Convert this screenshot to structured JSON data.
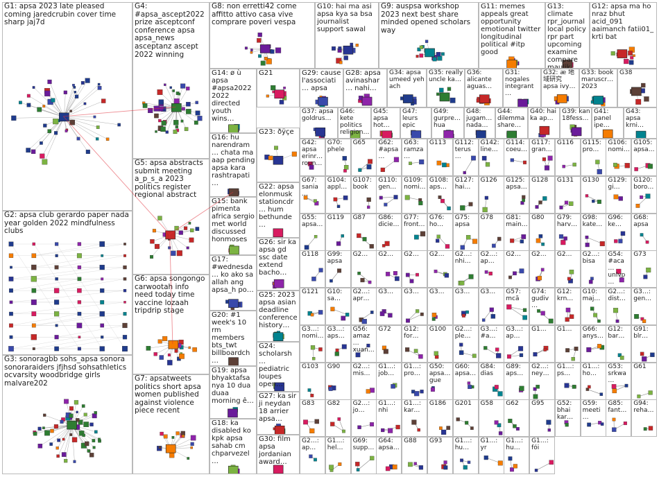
{
  "graph": {
    "colors": {
      "border": "#b9b9b9",
      "edge": "#8a8a8a",
      "highlight_edge": "#e0303a",
      "label": "#1d1d1d",
      "node_palette": [
        "#1f3b8c",
        "#2e7d32",
        "#c62828",
        "#6a1b9a",
        "#f57c00",
        "#00838f",
        "#5d4037",
        "#283593",
        "#7cb342",
        "#d81b60",
        "#3949ab",
        "#8e24aa"
      ]
    },
    "groups": [
      {
        "id": "G1",
        "label": "G1: apsa 2023 late pleased coming jaredcrubin cover time sharp jaj7d",
        "nodes": 45,
        "accent": "#1f3b8c"
      },
      {
        "id": "G4",
        "label": "G4: #apsa_ascept2022 prize asceptconf conference apsa apsa_news asceptanz ascept 2022 winning",
        "nodes": 40,
        "accent": "#2e7d32"
      },
      {
        "id": "G8",
        "label": "G8: non erretti42 come affitto attivo casa vive comprare poveri vespa",
        "nodes": 14,
        "accent": "#6a1b9a"
      },
      {
        "id": "G10",
        "label": "G10: hai ma asi apsa kya sa bsa journalist support sawal",
        "nodes": 10,
        "accent": "#283593"
      },
      {
        "id": "G9",
        "label": "G9: auspsa workshop 2023 next best share minded opened scholars way",
        "nodes": 12,
        "accent": "#00838f"
      },
      {
        "id": "G11",
        "label": "G11: memes appeals great opportunity emotional twitter longitudinal political #itp good",
        "nodes": 10,
        "accent": "#f57c00"
      },
      {
        "id": "G13",
        "label": "G13: climate rpr_journal local policy rpr part upcoming examine compare maulik",
        "nodes": 9,
        "accent": "#5d4037"
      },
      {
        "id": "G12",
        "label": "G12: apsa ma ho nraz bhut acid_091 aaimanch fatii01_ krti bat",
        "nodes": 9,
        "accent": "#c62828"
      },
      {
        "id": "G14",
        "label": "G14: ø ù apsa #apsa2022 2022 directed youth wins…",
        "nodes": 8,
        "accent": "#7cb342"
      },
      {
        "id": "G21",
        "label": "G21",
        "nodes": 7,
        "accent": "#d81b60"
      },
      {
        "id": "G29",
        "label": "G29: cause l'associati… apsa",
        "nodes": 6,
        "accent": "#3949ab"
      },
      {
        "id": "G28",
        "label": "G28: apsa avinashar… nahi…",
        "nodes": 6,
        "accent": "#8e24aa"
      },
      {
        "id": "G34",
        "label": "G34: apsa umeed yeh ach",
        "nodes": 5,
        "accent": "#1f3b8c"
      },
      {
        "id": "G35",
        "label": "G35: really uncle ka…",
        "nodes": 5,
        "accent": "#2e7d32"
      },
      {
        "id": "G36",
        "label": "G36: alicante aguas…",
        "nodes": 5,
        "accent": "#c62828"
      },
      {
        "id": "G31",
        "label": "G31: nogales integrant…",
        "nodes": 5,
        "accent": "#6a1b9a"
      },
      {
        "id": "G32",
        "label": "G32: æ 地域研究 apsa ivy…",
        "nodes": 5,
        "accent": "#f57c00"
      },
      {
        "id": "G33",
        "label": "G33: book maruscr… 2023",
        "nodes": 5,
        "accent": "#00838f"
      },
      {
        "id": "G38",
        "label": "G38",
        "nodes": 5,
        "accent": "#5d4037"
      },
      {
        "id": "G37",
        "label": "G37: apsa goldrus…",
        "nodes": 5,
        "accent": "#283593"
      },
      {
        "id": "G46",
        "label": "G46: kete politics religion…",
        "nodes": 4,
        "accent": "#7cb342"
      },
      {
        "id": "G45",
        "label": "G45: apsa hot…",
        "nodes": 4,
        "accent": "#d81b60"
      },
      {
        "id": "G47",
        "label": "G47: leurs epic",
        "nodes": 4,
        "accent": "#3949ab"
      },
      {
        "id": "G49",
        "label": "G49: gurpre… hua",
        "nodes": 4,
        "accent": "#8e24aa"
      },
      {
        "id": "G48",
        "label": "G48: jugam… nada…",
        "nodes": 4,
        "accent": "#1f3b8c"
      },
      {
        "id": "G44",
        "label": "G44: dilemma share…",
        "nodes": 4,
        "accent": "#2e7d32"
      },
      {
        "id": "G40",
        "label": "G40: hai ka ap…",
        "nodes": 4,
        "accent": "#c62828"
      },
      {
        "id": "G39",
        "label": "G39: kan 18fess…",
        "nodes": 4,
        "accent": "#6a1b9a"
      },
      {
        "id": "G41",
        "label": "G41: panel ipe…",
        "nodes": 4,
        "accent": "#f57c00"
      },
      {
        "id": "G43",
        "label": "G43: apsa krni…",
        "nodes": 4,
        "accent": "#00838f"
      },
      {
        "id": "G16",
        "label": "G16: hu narendram… chata ma aap pending apsa kara rashtrapati…",
        "nodes": 6,
        "accent": "#5d4037"
      },
      {
        "id": "G23",
        "label": "G23: ðÿçe",
        "nodes": 5,
        "accent": "#283593"
      },
      {
        "id": "G5",
        "label": "G5: apsa abstracts submit meeting a_p_s_a 2023 politics register regional abstract",
        "nodes": 18,
        "accent": "#c62828"
      },
      {
        "id": "G15",
        "label": "G15: bank pimenta africa sergio met world discussed honmoses",
        "nodes": 6,
        "accent": "#7cb342"
      },
      {
        "id": "G22",
        "label": "G22: apsa elonmusk stationcdr… hum bethunde…",
        "nodes": 5,
        "accent": "#d81b60"
      },
      {
        "id": "G17",
        "label": "G17: #wednesda… ko ako sa allah ang apsa_h po…",
        "nodes": 6,
        "accent": "#3949ab"
      },
      {
        "id": "G26",
        "label": "G26: sir ka apsa gd ssc date extend bacho…",
        "nodes": 5,
        "accent": "#8e24aa"
      },
      {
        "id": "G2",
        "label": "G2: apsa club gerardo paper nada year golden 2022 mindfulness clubs",
        "nodes": 60,
        "accent": "#1f3b8c"
      },
      {
        "id": "G6",
        "label": "G6: apsa songongo carwootah info need today time vaccine lozaah tripdrip stage",
        "nodes": 16,
        "accent": "#f57c00"
      },
      {
        "id": "G25",
        "label": "G25: 2023 apsa asian deadline conference history…",
        "nodes": 5,
        "accent": "#00838f"
      },
      {
        "id": "G20",
        "label": "G20: #1 week's 10 rm members bts_twt billboardch…",
        "nodes": 6,
        "accent": "#5d4037"
      },
      {
        "id": "G24",
        "label": "G24: scholarsh… pediatric loupes open…",
        "nodes": 5,
        "accent": "#283593"
      },
      {
        "id": "G3",
        "label": "G3: sonoragbb sohs_apsa sonora sonoraraiders jfjhsd sohsathletics ocvarsity woodbridge girls malvare202",
        "nodes": 50,
        "accent": "#2e7d32"
      },
      {
        "id": "G7",
        "label": "G7: apsatweets politics short apsa women published against violence piece recent",
        "nodes": 14,
        "accent": "#f57c00"
      },
      {
        "id": "G19",
        "label": "G19: apsa bhyaktafsa nya 10 dua duaa morning ê…",
        "nodes": 6,
        "accent": "#6a1b9a"
      },
      {
        "id": "G27",
        "label": "G27: ka sir ji neydan 18 arrier apsa…",
        "nodes": 5,
        "accent": "#c62828"
      },
      {
        "id": "G18",
        "label": "G18: ka disabled ko kpk apsa sahab cm chparvezel…",
        "nodes": 6,
        "accent": "#7cb342"
      },
      {
        "id": "G30",
        "label": "G30: film apsa jordanian award…",
        "nodes": 5,
        "accent": "#d81b60"
      }
    ],
    "mini_labels": [
      "G42: apsa erinr… roun…",
      "G70: phele",
      "G65",
      "G62: #apsa…",
      "G63: ramza…",
      "G113",
      "G112: terus…",
      "G142: line…",
      "G114: coeu…",
      "G117: gran…",
      "G116",
      "G115: pro…",
      "G106: nomi…",
      "G105: apsa…",
      "G67: sania…",
      "G104: appl…",
      "G107: book",
      "G110: gen…",
      "G109: nomi…",
      "G108: aps…",
      "G127: hai…",
      "G126",
      "G125: apsa…",
      "G128",
      "G131",
      "G130",
      "G129: gi…",
      "G120: boro…",
      "G55: apsa…",
      "G119",
      "G87",
      "G86: dicie…",
      "G77: front…",
      "G76: ho…",
      "G75: apsa",
      "G78",
      "G81: main…",
      "G80",
      "G79: harv…",
      "G98: kate…",
      "G96: ke…",
      "G68: apsa",
      "G118",
      "G99: apsa",
      "G2…",
      "G2…",
      "G2…",
      "G2…",
      "G2…: nhi…",
      "G2…: ap…",
      "G2…",
      "G2…",
      "G2…",
      "G2…: bisa",
      "G54: #aca… unlvp…",
      "G73",
      "G121",
      "G10: sa…",
      "G2…: apr…",
      "G3…",
      "G3…",
      "G3…",
      "G3…",
      "G3…",
      "G57: mcă",
      "G74: gudiv…",
      "G12: krn…",
      "G10: maj…",
      "G2…: dist…",
      "G3…: gen…",
      "G3…: nomi…",
      "G3…: aps…",
      "G56: amaz… xuan…",
      "G72",
      "G12: for…",
      "G100",
      "G2…: ple…",
      "G3…: #a…",
      "G3…: ap…",
      "G1…",
      "G1…",
      "G66: anys…",
      "G12: bar…",
      "G91: blr…",
      "G103",
      "G90",
      "G2…: mis…",
      "G1…: job…",
      "G1…: pro…",
      "G50: apsa… gue",
      "G60: apsa…",
      "G84: dias",
      "G89: aps…",
      "G2…: ney…",
      "G1…: ps…",
      "G1…: ho…",
      "G53: srkwa…",
      "G61",
      "G83",
      "G82",
      "G2…: jo…",
      "G1…: nhi",
      "G1…: kar…",
      "G186",
      "G201",
      "G58",
      "G62",
      "G95",
      "G52: bhai kar…",
      "G59: meeti…",
      "G85: fant…",
      "G94: reha…",
      "G2…: ap…",
      "G1…: hel…",
      "G69: supp…",
      "G64: apsa…",
      "G88",
      "G93",
      "G1…: hu…",
      "G1…: yr",
      "G1…: hu…",
      "G1…: fói"
    ]
  }
}
